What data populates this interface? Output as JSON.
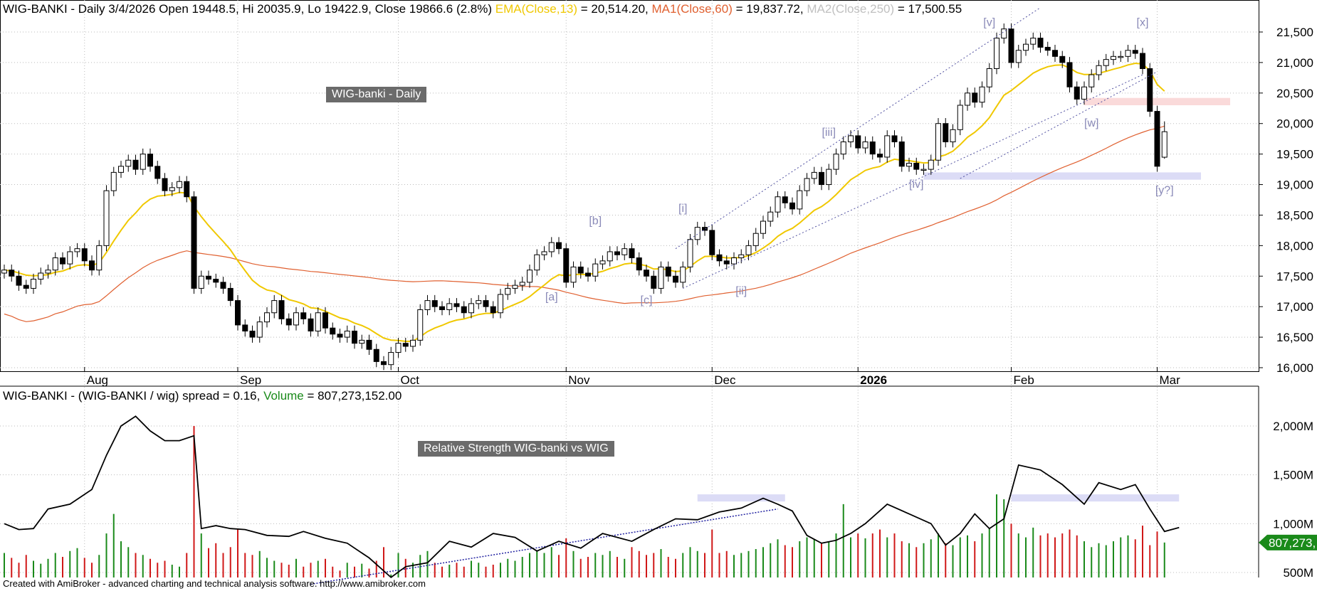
{
  "header": {
    "symbol_line": "WIG-BANKI - Daily 3/4/2026 Open 19448.5, Hi 20035.9, Lo 19422.9, Close 19866.6 (2.8%)",
    "ema_label": "EMA(Close,13)",
    "ema_value": " = 20,514.20, ",
    "ma1_label": "MA1(Close,60)",
    "ma1_value": " = 19,837.72, ",
    "ma2_label": "MA2(Close,250)",
    "ma2_value": " = 17,500.55"
  },
  "lower_header": {
    "rs_text": "WIG-BANKI - (WIG-BANKI / wig) spread = 0.16, ",
    "vol_label": "Volume",
    "vol_value": " = 807,273,152.00"
  },
  "boxes": {
    "price": "WIG-banki - Daily",
    "rs": "Relative Strength WIG-banki vs WIG"
  },
  "footer": "Created with AmiBroker - advanced charting and technical analysis software. http://www.amibroker.com",
  "colors": {
    "ema": "#f0c800",
    "ma1": "#e06030",
    "ma2": "#c0c0c0",
    "up_vol": "#1a8a1a",
    "down_vol": "#d01818",
    "wave": "#8a8ab8"
  },
  "chart_data": {
    "type": "candlestick",
    "month_labels": [
      {
        "bar": 11,
        "label": "Aug"
      },
      {
        "bar": 32,
        "label": "Sep"
      },
      {
        "bar": 54,
        "label": "Oct"
      },
      {
        "bar": 77,
        "label": "Nov"
      },
      {
        "bar": 97,
        "label": "Dec"
      },
      {
        "bar": 117,
        "label": "2026"
      },
      {
        "bar": 138,
        "label": "Feb"
      },
      {
        "bar": 158,
        "label": "Mar"
      }
    ],
    "price_ticks": [
      "21,500",
      "21,000",
      "20,500",
      "20,000",
      "19,500",
      "19,000",
      "18,500",
      "18,000",
      "17,500",
      "17,000",
      "16,500",
      "16,000"
    ],
    "price_tick_values": [
      21500,
      21000,
      20500,
      20000,
      19500,
      19000,
      18500,
      18000,
      17500,
      17000,
      16500,
      16000
    ],
    "ylim": [
      15900,
      21800
    ],
    "closes": [
      17600,
      17500,
      17350,
      17300,
      17450,
      17550,
      17600,
      17800,
      17700,
      17900,
      17950,
      17750,
      17600,
      18000,
      18900,
      19200,
      19300,
      19400,
      19250,
      19500,
      19300,
      19100,
      18900,
      18950,
      19050,
      18800,
      17300,
      17500,
      17450,
      17400,
      17300,
      17100,
      16700,
      16600,
      16500,
      16750,
      16900,
      17100,
      16800,
      16700,
      16900,
      16800,
      16600,
      16900,
      16650,
      16550,
      16500,
      16600,
      16400,
      16450,
      16300,
      16100,
      16050,
      16250,
      16400,
      16350,
      16450,
      16950,
      17100,
      17000,
      16950,
      17050,
      17000,
      16900,
      17050,
      17100,
      17000,
      16900,
      17200,
      17300,
      17350,
      17400,
      17600,
      17850,
      17900,
      18050,
      17950,
      17400,
      17650,
      17550,
      17500,
      17700,
      17750,
      17900,
      17850,
      17950,
      17800,
      17600,
      17500,
      17300,
      17650,
      17500,
      17400,
      17650,
      18100,
      18300,
      18250,
      17850,
      17750,
      17700,
      17800,
      17850,
      18000,
      18200,
      18400,
      18550,
      18800,
      18700,
      18600,
      18900,
      19100,
      19200,
      19000,
      19250,
      19500,
      19700,
      19800,
      19600,
      19700,
      19500,
      19450,
      19800,
      19700,
      19300,
      19350,
      19250,
      19250,
      19400,
      20000,
      19700,
      19900,
      20300,
      20500,
      20350,
      20600,
      20900,
      21400,
      21550,
      21000,
      21200,
      21300,
      21400,
      21250,
      21200,
      21100,
      21000,
      20600,
      20400,
      20600,
      20800,
      20950,
      21050,
      21100,
      21100,
      21200,
      21150,
      20900,
      20200,
      19300,
      19866.6
    ],
    "last_bar": {
      "open": 19448.5,
      "high": 20035.9,
      "low": 19422.9,
      "close": 19866.6
    },
    "wave_labels": [
      {
        "text": "[a]",
        "bar": 75,
        "price": 17100
      },
      {
        "text": "[b]",
        "bar": 81,
        "price": 18350
      },
      {
        "text": "[c]",
        "bar": 88,
        "price": 17050
      },
      {
        "text": "[i]",
        "bar": 93,
        "price": 18550
      },
      {
        "text": "[ii]",
        "bar": 101,
        "price": 17200
      },
      {
        "text": "[iii]",
        "bar": 113,
        "price": 19800
      },
      {
        "text": "[iv]",
        "bar": 125,
        "price": 18950
      },
      {
        "text": "[v]",
        "bar": 135,
        "price": 21600
      },
      {
        "text": "[w]",
        "bar": 149,
        "price": 19950
      },
      {
        "text": "[x]",
        "bar": 156,
        "price": 21600
      },
      {
        "text": "[y?]",
        "bar": 159,
        "price": 18850
      }
    ],
    "zones": [
      {
        "color": "#fadada",
        "from_bar": 148,
        "to_bar": 168,
        "low": 20300,
        "high": 20420
      },
      {
        "color": "#dcdcf6",
        "from_bar": 126,
        "to_bar": 164,
        "low": 19080,
        "high": 19200
      }
    ],
    "trendlines": [
      {
        "from": [
          92,
          17950
        ],
        "to": [
          142,
          21900
        ]
      },
      {
        "from": [
          93,
          17300
        ],
        "to": [
          156,
          20800
        ]
      },
      {
        "from": [
          131,
          19100
        ],
        "to": [
          158,
          20850
        ]
      }
    ],
    "volume": {
      "axis_ticks": [
        "2,000M",
        "1,500M",
        "1,000M",
        "500M"
      ],
      "axis_values": [
        2000,
        1500,
        1000,
        500
      ],
      "last_label": "807,273,",
      "values_m": [
        700,
        650,
        600,
        680,
        620,
        590,
        640,
        700,
        660,
        720,
        750,
        650,
        600,
        680,
        900,
        1100,
        820,
        760,
        700,
        680,
        640,
        600,
        620,
        580,
        560,
        700,
        2000,
        900,
        750,
        800,
        700,
        760,
        950,
        700,
        680,
        720,
        650,
        620,
        600,
        580,
        640,
        560,
        600,
        620,
        640,
        560,
        520,
        600,
        560,
        590,
        540,
        620,
        760,
        480,
        700,
        640,
        600,
        680,
        720,
        600,
        560,
        580,
        600,
        560,
        620,
        600,
        560,
        580,
        600,
        640,
        620,
        660,
        700,
        720,
        700,
        760,
        680,
        850,
        720,
        640,
        660,
        700,
        680,
        720,
        660,
        640,
        760,
        720,
        680,
        700,
        740,
        660,
        640,
        700,
        760,
        720,
        700,
        940,
        700,
        720,
        680,
        700,
        720,
        740,
        760,
        800,
        840,
        780,
        760,
        820,
        860,
        840,
        800,
        820,
        900,
        1200,
        860,
        900,
        850,
        900,
        940,
        860,
        900,
        820,
        800,
        760,
        800,
        840,
        900,
        800,
        780,
        860,
        880,
        820,
        900,
        950,
        1300,
        1250,
        1000,
        900,
        860,
        960,
        880,
        900,
        860,
        900,
        940,
        880,
        820,
        760,
        800,
        780,
        820,
        860,
        880,
        840,
        980,
        780,
        920,
        807
      ]
    },
    "rs_line": {
      "points": [
        [
          0,
          1000
        ],
        [
          2,
          940
        ],
        [
          4,
          950
        ],
        [
          6,
          1150
        ],
        [
          9,
          1200
        ],
        [
          12,
          1350
        ],
        [
          14,
          1700
        ],
        [
          16,
          2000
        ],
        [
          18,
          2100
        ],
        [
          20,
          1950
        ],
        [
          22,
          1850
        ],
        [
          24,
          1850
        ],
        [
          26,
          1900
        ],
        [
          27,
          950
        ],
        [
          29,
          980
        ],
        [
          31,
          950
        ],
        [
          33,
          940
        ],
        [
          36,
          880
        ],
        [
          39,
          870
        ],
        [
          41,
          920
        ],
        [
          44,
          850
        ],
        [
          47,
          800
        ],
        [
          50,
          650
        ],
        [
          53,
          450
        ],
        [
          55,
          560
        ],
        [
          58,
          600
        ],
        [
          61,
          820
        ],
        [
          64,
          760
        ],
        [
          67,
          900
        ],
        [
          70,
          860
        ],
        [
          73,
          720
        ],
        [
          76,
          820
        ],
        [
          79,
          750
        ],
        [
          82,
          900
        ],
        [
          86,
          820
        ],
        [
          89,
          940
        ],
        [
          92,
          1050
        ],
        [
          95,
          1040
        ],
        [
          98,
          1120
        ],
        [
          101,
          1160
        ],
        [
          104,
          1260
        ],
        [
          106,
          1200
        ],
        [
          108,
          1130
        ],
        [
          110,
          880
        ],
        [
          112,
          800
        ],
        [
          114,
          830
        ],
        [
          116,
          900
        ],
        [
          118,
          1000
        ],
        [
          121,
          1200
        ],
        [
          124,
          1100
        ],
        [
          127,
          1000
        ],
        [
          129,
          780
        ],
        [
          131,
          900
        ],
        [
          133,
          1100
        ],
        [
          135,
          950
        ],
        [
          137,
          1050
        ],
        [
          139,
          1600
        ],
        [
          142,
          1550
        ],
        [
          145,
          1400
        ],
        [
          148,
          1200
        ],
        [
          150,
          1420
        ],
        [
          153,
          1350
        ],
        [
          155,
          1400
        ],
        [
          157,
          1150
        ],
        [
          159,
          920
        ],
        [
          161,
          960
        ]
      ]
    }
  }
}
